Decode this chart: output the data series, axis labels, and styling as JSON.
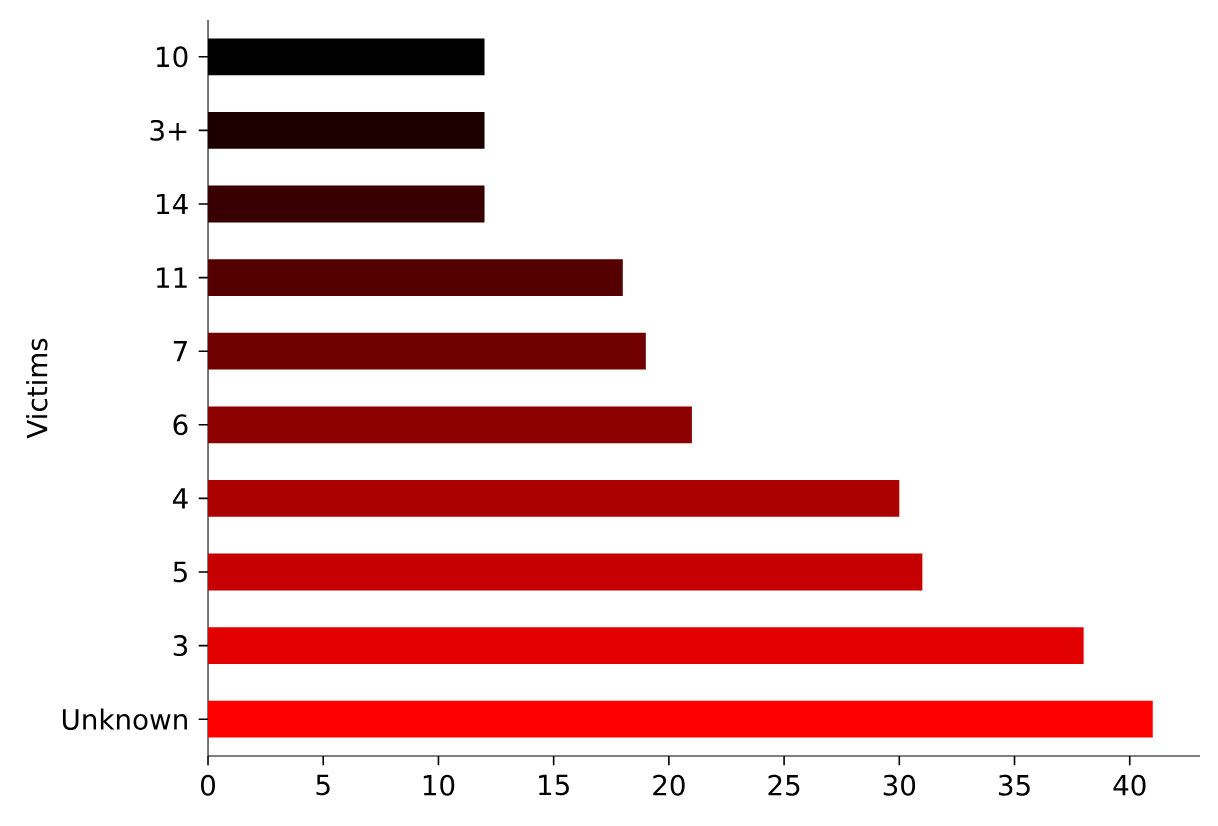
{
  "chart_data": {
    "type": "bar",
    "orientation": "horizontal",
    "ylabel": "Victims",
    "categories": [
      "10",
      "3+",
      "14",
      "11",
      "7",
      "6",
      "4",
      "5",
      "3",
      "Unknown"
    ],
    "values": [
      12,
      12,
      12,
      18,
      19,
      21,
      30,
      31,
      38,
      41
    ],
    "colors": [
      "#000000",
      "#1c0000",
      "#380000",
      "#550000",
      "#710000",
      "#8d0000",
      "#aa0000",
      "#c60000",
      "#e20000",
      "#ff0000"
    ],
    "xlim": [
      0,
      43.05
    ],
    "xticks": [
      0,
      5,
      10,
      15,
      20,
      25,
      30,
      35,
      40
    ]
  }
}
